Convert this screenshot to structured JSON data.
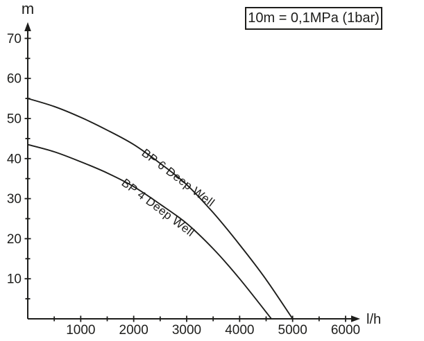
{
  "chart_data": {
    "type": "line",
    "title": "",
    "xlabel": "l/h",
    "ylabel": "m",
    "annotation": "10m = 0,1MPa (1bar)",
    "xlim": [
      0,
      6600
    ],
    "ylim": [
      0,
      74
    ],
    "grid": false,
    "legend_position": "labels-along-curves",
    "axis_color": "#1d1d1b",
    "curve_color": "#1d1d1b",
    "background_color": "#ffffff",
    "x_major_ticks": [
      1000,
      2000,
      3000,
      4000,
      5000,
      6000
    ],
    "x_minor_ticks": [
      500,
      1500,
      2500,
      3500,
      4500,
      5500
    ],
    "y_major_ticks": [
      10,
      20,
      30,
      40,
      50,
      60,
      70
    ],
    "y_minor_ticks": [
      5,
      15,
      25,
      35,
      45,
      55,
      65
    ],
    "series": [
      {
        "name": "BP 6 Deep Well",
        "x": [
          0,
          500,
          1000,
          1500,
          2000,
          2500,
          3000,
          3500,
          4000,
          4500,
          5000
        ],
        "y": [
          55,
          53,
          50.3,
          47.1,
          43.5,
          38.8,
          33.5,
          26.5,
          18.5,
          9.8,
          0
        ]
      },
      {
        "name": "BP 4 Deep Well",
        "x": [
          0,
          500,
          1000,
          1500,
          2000,
          2500,
          3000,
          3500,
          4000,
          4600
        ],
        "y": [
          43.5,
          41.7,
          39.2,
          36.4,
          33,
          28.6,
          23.8,
          17.5,
          10,
          0
        ]
      }
    ]
  }
}
